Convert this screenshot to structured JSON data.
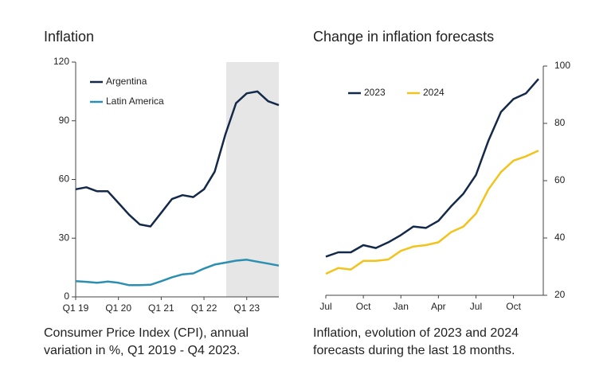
{
  "chart_data": [
    {
      "type": "line",
      "title": "Inflation",
      "caption": "Consumer Price Index (CPI), annual variation in %, Q1 2019 - Q4 2023.",
      "categories": [
        "Q1 19",
        null,
        null,
        null,
        "Q1 20",
        null,
        null,
        null,
        "Q1 21",
        null,
        null,
        null,
        "Q1 22",
        null,
        null,
        null,
        "Q1 23",
        null,
        null,
        null
      ],
      "series": [
        {
          "name": "Argentina",
          "color": "#14294a",
          "values": [
            55,
            56,
            54,
            54,
            48,
            42,
            37,
            36,
            43,
            50,
            52,
            51,
            55,
            64,
            83,
            99,
            104,
            105,
            100,
            98
          ]
        },
        {
          "name": "Latin America",
          "color": "#2a8fb0",
          "values": [
            8,
            7.7,
            7.2,
            7.8,
            7.2,
            6,
            6,
            6.2,
            8,
            10,
            11.5,
            12,
            14.5,
            16.5,
            17.5,
            18.5,
            19,
            18,
            17,
            16
          ]
        }
      ],
      "ylim": [
        0,
        120
      ],
      "yticks": [
        0,
        30,
        60,
        90,
        120
      ],
      "y_axis_side": "left",
      "legend": "top-left"
    },
    {
      "type": "line",
      "title": "Change in inflation forecasts",
      "caption": "Inflation, evolution of 2023 and 2024 forecasts during the last 18 months.",
      "categories": [
        "Jul",
        null,
        null,
        "Oct",
        null,
        null,
        "Jan",
        null,
        null,
        "Apr",
        null,
        null,
        "Jul",
        null,
        null,
        "Oct",
        null,
        null
      ],
      "series": [
        {
          "name": "2023",
          "color": "#14294a",
          "values": [
            33.5,
            35,
            35,
            37.5,
            36.5,
            38.5,
            41,
            44,
            43.5,
            46,
            51,
            55.5,
            62,
            74,
            84,
            88.5,
            90.5,
            95.5
          ]
        },
        {
          "name": "2024",
          "color": "#f2c31a",
          "values": [
            27.5,
            29.5,
            29,
            32,
            32,
            32.5,
            35.5,
            37,
            37.5,
            38.5,
            42,
            44,
            48.5,
            57,
            63,
            67,
            68.5,
            70.5
          ]
        }
      ],
      "ylim": [
        20,
        100
      ],
      "yticks": [
        20,
        40,
        60,
        80,
        100
      ],
      "y_axis_side": "right",
      "legend": "top-left-row"
    }
  ]
}
